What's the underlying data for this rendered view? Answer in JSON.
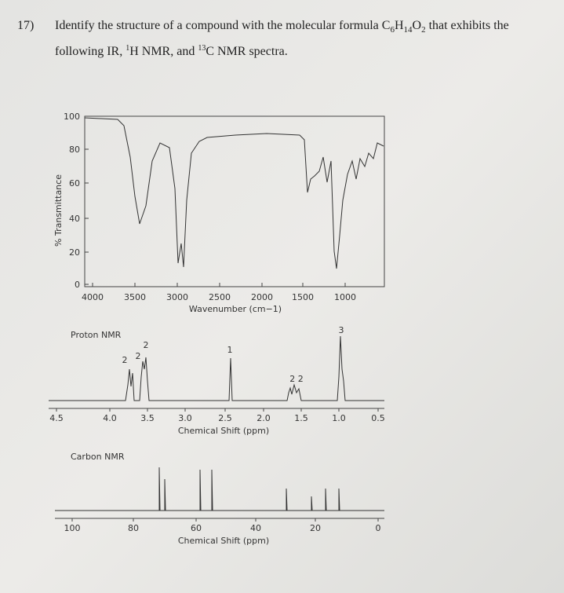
{
  "question": {
    "number": "17)",
    "line1": [
      "Identify the structure of a compound with the molecular formula C",
      "6",
      "H",
      "14",
      "O",
      "2",
      " that exhibits the"
    ],
    "line2": [
      "following IR, ",
      "1",
      "H NMR, and ",
      "13",
      "C NMR spectra."
    ]
  },
  "ir": {
    "y_label": "% Transmittance",
    "x_label": "Wavenumber (cm−1)",
    "yticks": [
      "100",
      "80",
      "60",
      "40",
      "20",
      "0"
    ],
    "xticks": [
      "4000",
      "3500",
      "3000",
      "2500",
      "2000",
      "1500",
      "1000"
    ]
  },
  "proton_nmr": {
    "title": "Proton NMR",
    "x_label": "Chemical Shift (ppm)",
    "xticks": [
      "4.5",
      "4.0",
      "3.5",
      "3.0",
      "2.5",
      "2.0",
      "1.5",
      "1.0",
      "0.5"
    ],
    "integrations": [
      "2",
      "2",
      "2",
      "1",
      "2 2",
      "3"
    ]
  },
  "carbon_nmr": {
    "title": "Carbon NMR",
    "x_label": "Chemical Shift (ppm)",
    "xticks": [
      "100",
      "80",
      "60",
      "40",
      "20",
      "0"
    ]
  }
}
